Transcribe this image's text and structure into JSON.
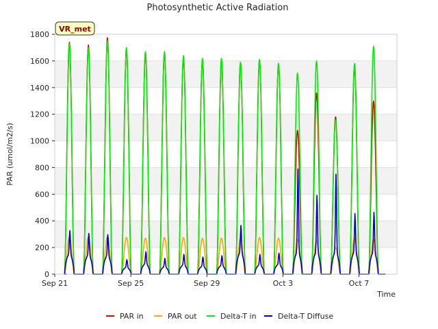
{
  "chart_data": {
    "type": "line",
    "title": "Photosynthetic Active Radiation",
    "xlabel": "Time",
    "ylabel": "PAR (umol/m2/s)",
    "badge": "VR_met",
    "ylim": [
      0,
      1800
    ],
    "yticks": [
      0,
      200,
      400,
      600,
      800,
      1000,
      1200,
      1400,
      1600,
      1800
    ],
    "xlim": [
      "Sep 21",
      "Oct 9"
    ],
    "xticks": [
      "Sep 21",
      "Sep 25",
      "Sep 29",
      "Oct 3",
      "Oct 7"
    ],
    "grid": "banded",
    "legend_position": "bottom",
    "days": [
      "Sep 21",
      "Sep 22",
      "Sep 23",
      "Sep 24",
      "Sep 25",
      "Sep 26",
      "Sep 27",
      "Sep 28",
      "Sep 29",
      "Sep 30",
      "Oct 1",
      "Oct 2",
      "Oct 3",
      "Oct 4",
      "Oct 5",
      "Oct 6",
      "Oct 7"
    ],
    "series": [
      {
        "name": "PAR in",
        "color": "#dd0000",
        "daily_peak": [
          1740,
          1720,
          1775,
          1690,
          1660,
          1660,
          1630,
          1610,
          1610,
          1590,
          1610,
          1580,
          1080,
          1360,
          1180,
          1560,
          1300
        ]
      },
      {
        "name": "PAR out",
        "color": "#ffa500",
        "daily_peak": [
          280,
          280,
          280,
          275,
          270,
          275,
          275,
          270,
          270,
          270,
          275,
          270,
          260,
          250,
          200,
          270,
          260
        ]
      },
      {
        "name": "Delta-T in",
        "color": "#00ee00",
        "daily_peak": [
          1730,
          1700,
          1750,
          1700,
          1670,
          1670,
          1640,
          1620,
          1620,
          1590,
          1610,
          1580,
          1510,
          1600,
          1160,
          1580,
          1710
        ]
      },
      {
        "name": "Delta-T Diffuse",
        "color": "#0000cc",
        "daily_peak": [
          330,
          310,
          300,
          110,
          170,
          120,
          150,
          130,
          140,
          370,
          150,
          160,
          800,
          600,
          760,
          460,
          470
        ]
      }
    ]
  }
}
